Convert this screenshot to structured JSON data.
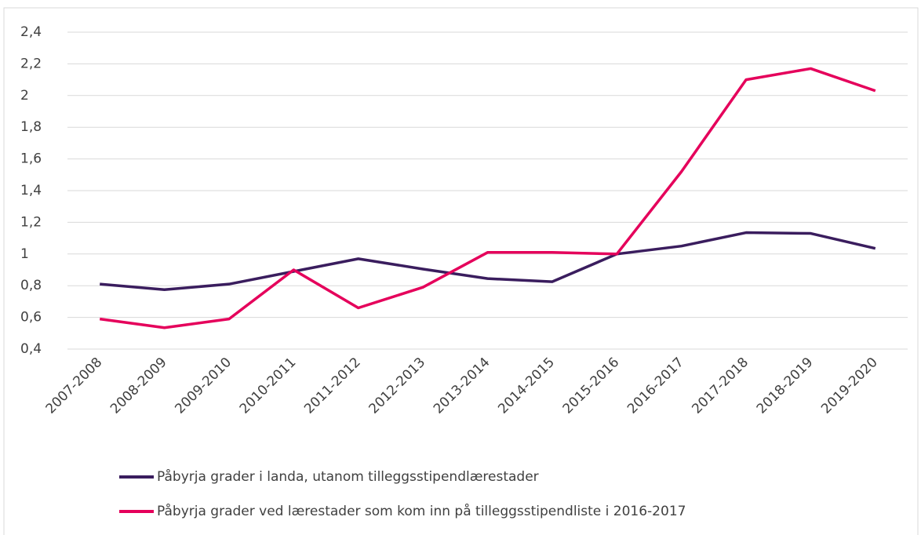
{
  "chart_data": {
    "type": "line",
    "categories": [
      "2007-2008",
      "2008-2009",
      "2009-2010",
      "2010-2011",
      "2011-2012",
      "2012-2013",
      "2013-2014",
      "2014-2015",
      "2015-2016",
      "2016-2017",
      "2017-2018",
      "2018-2019",
      "2019-2020"
    ],
    "series": [
      {
        "name": "Påbyrja grader i landa, utanom tilleggsstipendlærestader",
        "color": "#3a1d5e",
        "values": [
          0.81,
          0.775,
          0.81,
          0.89,
          0.97,
          0.905,
          0.845,
          0.825,
          1.0,
          1.05,
          1.135,
          1.13,
          1.035
        ]
      },
      {
        "name": "Påbyrja grader ved lærestader som kom inn på tilleggsstipendliste i 2016-2017",
        "color": "#e5005b",
        "values": [
          0.59,
          0.535,
          0.59,
          0.9,
          0.66,
          0.79,
          1.01,
          1.01,
          1.0,
          1.52,
          2.1,
          2.17,
          2.03
        ]
      }
    ],
    "ylim": [
      0.4,
      2.4
    ],
    "yticks": [
      {
        "value": 0.4,
        "label": "0,4"
      },
      {
        "value": 0.6,
        "label": "0,6"
      },
      {
        "value": 0.8,
        "label": "0,8"
      },
      1,
      {
        "value": 1.2,
        "label": "1,2"
      },
      {
        "value": 1.4,
        "label": "1,4"
      },
      {
        "value": 1.6,
        "label": "1,6"
      },
      {
        "value": 1.8,
        "label": "1,8"
      },
      2,
      {
        "value": 2.2,
        "label": "2,2"
      },
      {
        "value": 2.4,
        "label": "2,4"
      }
    ],
    "grid": true,
    "legend": "bottom"
  }
}
